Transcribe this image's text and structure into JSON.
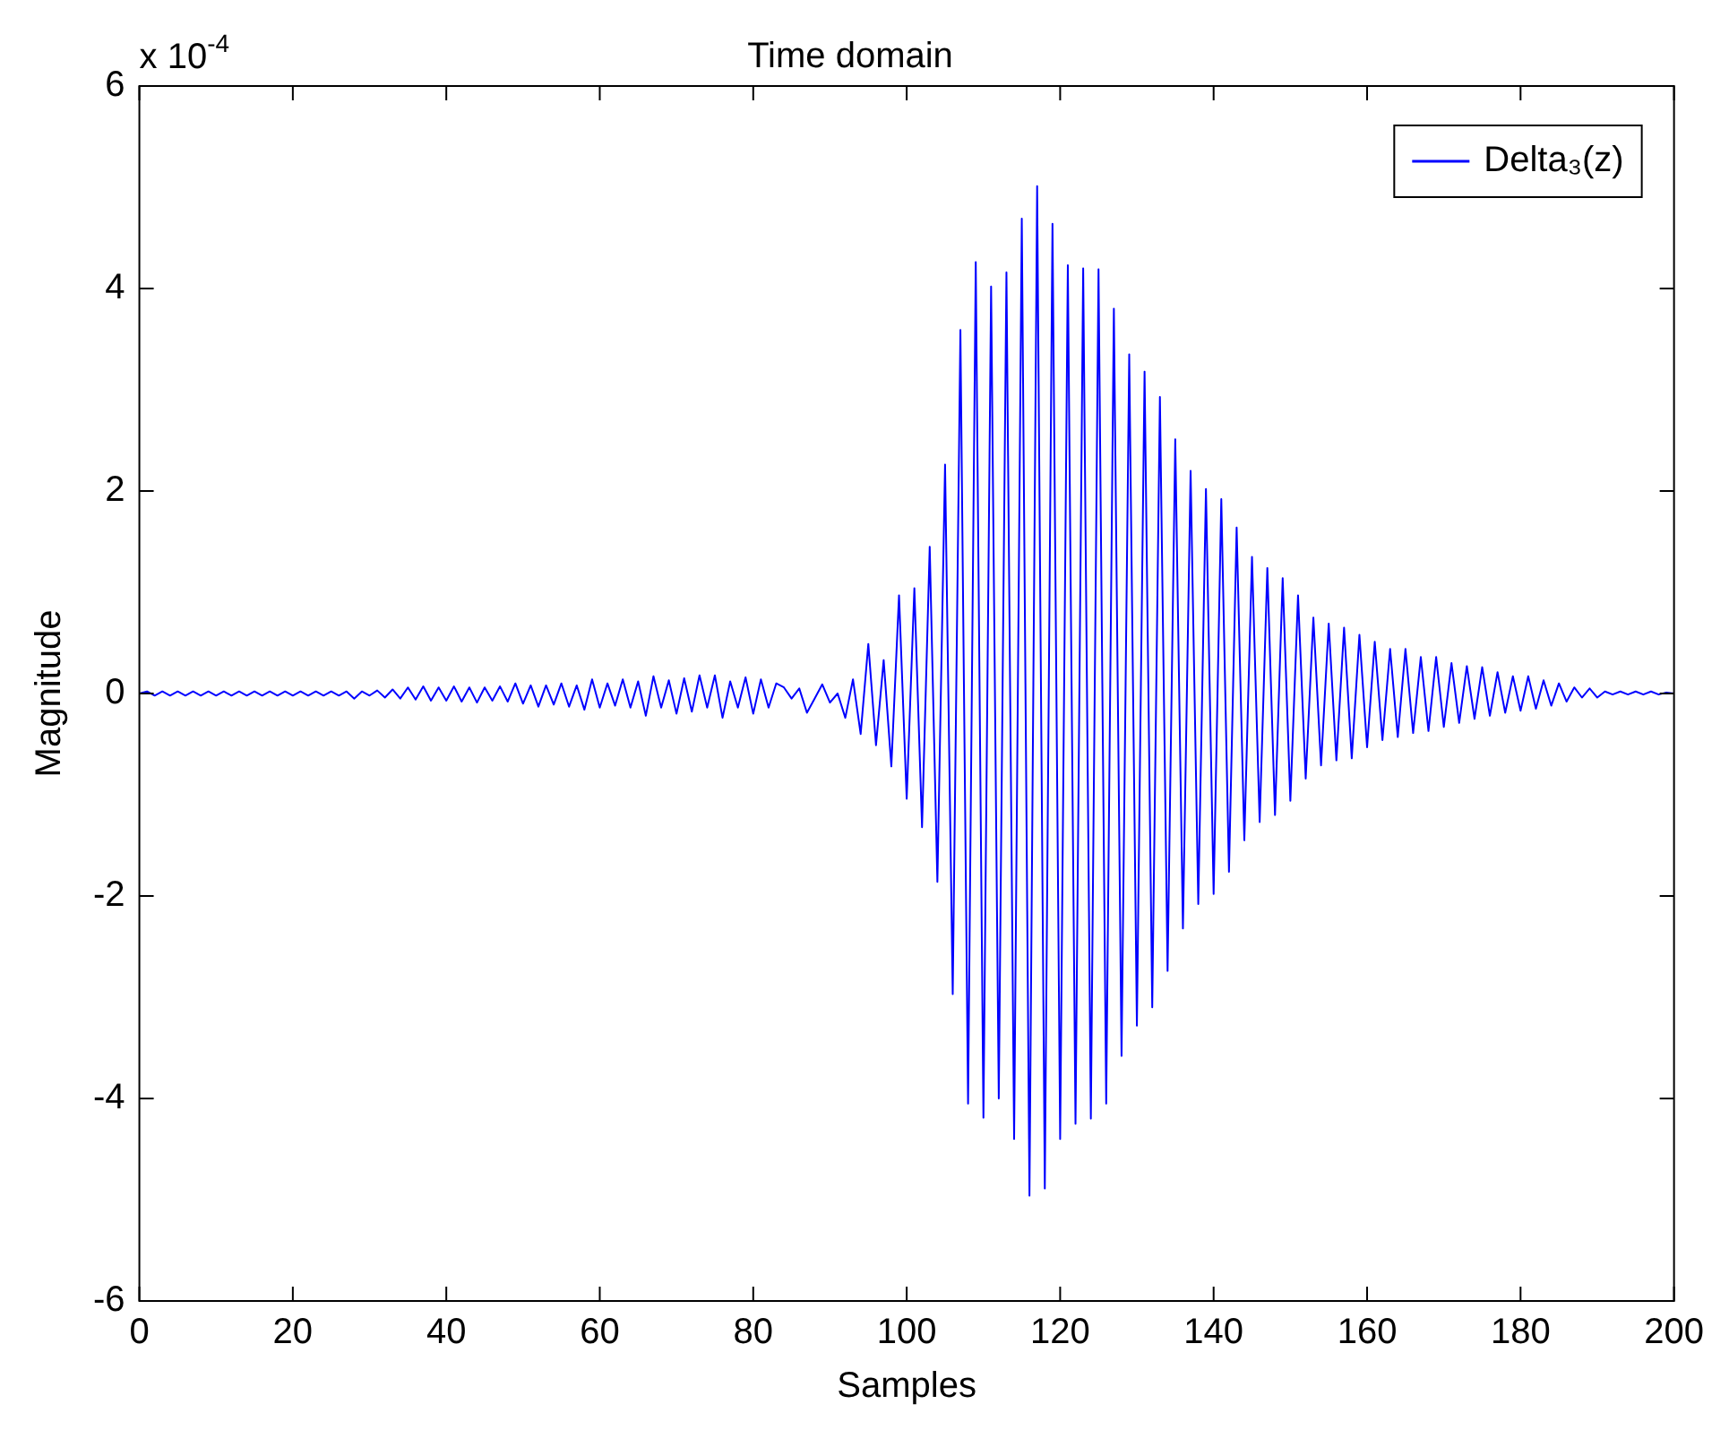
{
  "chart_data": {
    "type": "line",
    "title": "Time domain",
    "xlabel": "Samples",
    "ylabel": "Magnitude",
    "annotations": [
      "x 10$^{-4}$"
    ],
    "x": [
      0,
      1,
      2,
      3,
      4,
      5,
      6,
      7,
      8,
      9,
      10,
      11,
      12,
      13,
      14,
      15,
      16,
      17,
      18,
      19,
      20,
      21,
      22,
      23,
      24,
      25,
      26,
      27,
      28,
      29,
      30,
      31,
      32,
      33,
      34,
      35,
      36,
      37,
      38,
      39,
      40,
      41,
      42,
      43,
      44,
      45,
      46,
      47,
      48,
      49,
      50,
      51,
      52,
      53,
      54,
      55,
      56,
      57,
      58,
      59,
      60,
      61,
      62,
      63,
      64,
      65,
      66,
      67,
      68,
      69,
      70,
      71,
      72,
      73,
      74,
      75,
      76,
      77,
      78,
      79,
      80,
      81,
      82,
      83,
      84,
      85,
      86,
      87,
      88,
      89,
      90,
      91,
      92,
      93,
      94,
      95,
      96,
      97,
      98,
      99,
      100,
      101,
      102,
      103,
      104,
      105,
      106,
      107,
      108,
      109,
      110,
      111,
      112,
      113,
      114,
      115,
      116,
      117,
      118,
      119,
      120,
      121,
      122,
      123,
      124,
      125,
      126,
      127,
      128,
      129,
      130,
      131,
      132,
      133,
      134,
      135,
      136,
      137,
      138,
      139,
      140,
      141,
      142,
      143,
      144,
      145,
      146,
      147,
      148,
      149,
      150,
      151,
      152,
      153,
      154,
      155,
      156,
      157,
      158,
      159,
      160,
      161,
      162,
      163,
      164,
      165,
      166,
      167,
      168,
      169,
      170,
      171,
      172,
      173,
      174,
      175,
      176,
      177,
      178,
      179,
      180,
      181,
      182,
      183,
      184,
      185,
      186,
      187,
      188,
      189,
      190,
      191,
      192,
      193,
      194,
      195,
      196,
      197,
      198,
      199,
      200
    ],
    "series": [
      {
        "name": "Delta₃(z)",
        "color": "#0000ff",
        "values": [
          0,
          0.02,
          -0.02,
          0.02,
          -0.02,
          0.02,
          -0.02,
          0.02,
          -0.02,
          0.02,
          -0.02,
          0.02,
          -0.02,
          0.02,
          -0.02,
          0.02,
          -0.02,
          0.02,
          -0.02,
          0.02,
          -0.02,
          0.02,
          -0.02,
          0.02,
          -0.02,
          0.02,
          -0.02,
          0.02,
          -0.05,
          0.02,
          -0.02,
          0.03,
          -0.04,
          0.04,
          -0.05,
          0.06,
          -0.06,
          0.07,
          -0.07,
          0.06,
          -0.07,
          0.07,
          -0.08,
          0.06,
          -0.09,
          0.06,
          -0.07,
          0.07,
          -0.08,
          0.1,
          -0.1,
          0.08,
          -0.13,
          0.08,
          -0.11,
          0.1,
          -0.13,
          0.08,
          -0.16,
          0.14,
          -0.14,
          0.1,
          -0.12,
          0.14,
          -0.14,
          0.12,
          -0.22,
          0.17,
          -0.14,
          0.13,
          -0.2,
          0.15,
          -0.18,
          0.18,
          -0.14,
          0.18,
          -0.24,
          0.12,
          -0.14,
          0.16,
          -0.2,
          0.14,
          -0.14,
          0.1,
          0.06,
          -0.05,
          0.05,
          -0.19,
          -0.05,
          0.09,
          -0.09,
          0,
          -0.24,
          0.14,
          -0.4,
          0.49,
          -0.51,
          0.33,
          -0.72,
          0.97,
          -1.04,
          1.04,
          -1.32,
          1.45,
          -1.86,
          2.26,
          -2.97,
          3.59,
          -4.05,
          4.26,
          -4.19,
          4.02,
          -4,
          4.16,
          -4.4,
          4.69,
          -4.96,
          5.01,
          -4.89,
          4.64,
          -4.4,
          4.23,
          -4.25,
          4.2,
          -4.2,
          4.19,
          -4.05,
          3.8,
          -3.58,
          3.35,
          -3.28,
          3.18,
          -3.1,
          2.93,
          -2.74,
          2.51,
          -2.32,
          2.2,
          -2.08,
          2.02,
          -1.98,
          1.92,
          -1.76,
          1.64,
          -1.45,
          1.35,
          -1.27,
          1.24,
          -1.2,
          1.14,
          -1.06,
          0.97,
          -0.84,
          0.75,
          -0.71,
          0.69,
          -0.66,
          0.65,
          -0.64,
          0.58,
          -0.53,
          0.51,
          -0.46,
          0.44,
          -0.43,
          0.44,
          -0.39,
          0.36,
          -0.37,
          0.36,
          -0.33,
          0.3,
          -0.29,
          0.27,
          -0.25,
          0.26,
          -0.22,
          0.21,
          -0.19,
          0.17,
          -0.17,
          0.17,
          -0.15,
          0.13,
          -0.12,
          0.1,
          -0.08,
          0.06,
          -0.04,
          0.05,
          -0.04,
          0.02,
          -0.01,
          0.02,
          -0.01,
          0.02,
          -0.01,
          0.02,
          -0.01,
          0.01,
          0
        ]
      }
    ],
    "xlim": [
      0,
      200
    ],
    "xticks": [
      0,
      20,
      40,
      60,
      80,
      100,
      120,
      140,
      160,
      180,
      200
    ],
    "ylim": [
      -6,
      6
    ],
    "yticks": [
      -6,
      -4,
      -2,
      0,
      2,
      4,
      6
    ],
    "grid": false,
    "legend": "top right",
    "marker": "none",
    "line_style": "solid"
  }
}
